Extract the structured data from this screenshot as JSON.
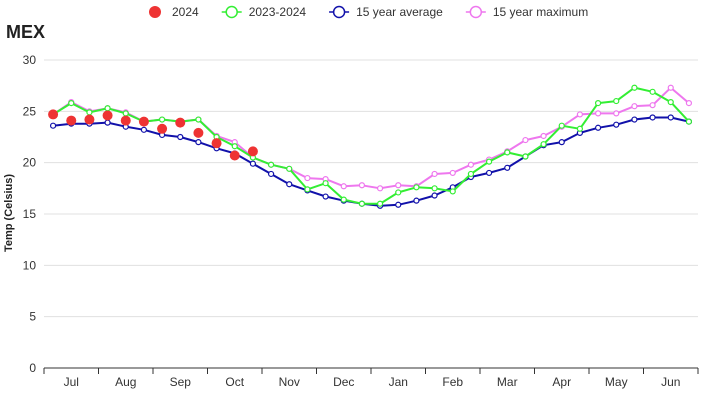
{
  "chart_data": {
    "type": "line",
    "title": "MEX",
    "ylabel": "Temp (Celsius)",
    "xlabel": "",
    "ylim": [
      0,
      30
    ],
    "yticks": [
      0,
      5,
      10,
      15,
      20,
      25,
      30
    ],
    "xlim": [
      0,
      36
    ],
    "months": [
      {
        "label": "Jul",
        "pos": 1.5
      },
      {
        "label": "Aug",
        "pos": 4.5
      },
      {
        "label": "Sep",
        "pos": 7.5
      },
      {
        "label": "Oct",
        "pos": 10.5
      },
      {
        "label": "Nov",
        "pos": 13.5
      },
      {
        "label": "Dec",
        "pos": 16.5
      },
      {
        "label": "Jan",
        "pos": 19.5
      },
      {
        "label": "Feb",
        "pos": 22.5
      },
      {
        "label": "Mar",
        "pos": 25.5
      },
      {
        "label": "Apr",
        "pos": 28.5
      },
      {
        "label": "May",
        "pos": 31.5
      },
      {
        "label": "Jun",
        "pos": 34.5
      }
    ],
    "grid": true,
    "legend_position": "top",
    "series": [
      {
        "name": "2024",
        "kind": "markers",
        "color": "#ee3333",
        "values": [
          24.7,
          24.1,
          24.2,
          24.6,
          24.1,
          24.0,
          23.3,
          23.9,
          22.9,
          21.9,
          20.7,
          21.1
        ]
      },
      {
        "name": "2023-2024",
        "kind": "line",
        "color": "#33ee33",
        "values": [
          24.7,
          25.8,
          24.9,
          25.3,
          24.8,
          24.0,
          24.2,
          24.0,
          24.2,
          22.5,
          21.6,
          20.5,
          19.8,
          19.4,
          17.4,
          18.0,
          16.4,
          16.0,
          16.0,
          17.1,
          17.6,
          17.5,
          17.2,
          18.9,
          20.1,
          21.0,
          20.6,
          21.8,
          23.6,
          23.3,
          25.8,
          26.0,
          27.3,
          26.9,
          25.9,
          24.0
        ]
      },
      {
        "name": "15 year average",
        "kind": "line",
        "color": "#1111aa",
        "values": [
          23.6,
          23.8,
          23.8,
          23.9,
          23.5,
          23.2,
          22.7,
          22.5,
          22.0,
          21.4,
          20.9,
          19.9,
          18.9,
          17.9,
          17.3,
          16.7,
          16.3,
          16.0,
          15.8,
          15.9,
          16.3,
          16.8,
          17.6,
          18.6,
          19.0,
          19.5,
          20.6,
          21.7,
          22.0,
          22.9,
          23.4,
          23.7,
          24.2,
          24.4,
          24.4,
          24.0
        ]
      },
      {
        "name": "15 year maximum",
        "kind": "line",
        "color": "#ee77ee",
        "values": [
          24.7,
          25.9,
          25.0,
          25.3,
          24.9,
          24.0,
          24.2,
          24.0,
          24.2,
          22.6,
          22.0,
          20.5,
          19.8,
          19.4,
          18.5,
          18.4,
          17.7,
          17.8,
          17.5,
          17.8,
          17.7,
          18.9,
          19.0,
          19.8,
          20.3,
          21.1,
          22.2,
          22.6,
          23.5,
          24.7,
          24.8,
          24.8,
          25.5,
          25.6,
          27.3,
          25.8
        ]
      }
    ]
  }
}
